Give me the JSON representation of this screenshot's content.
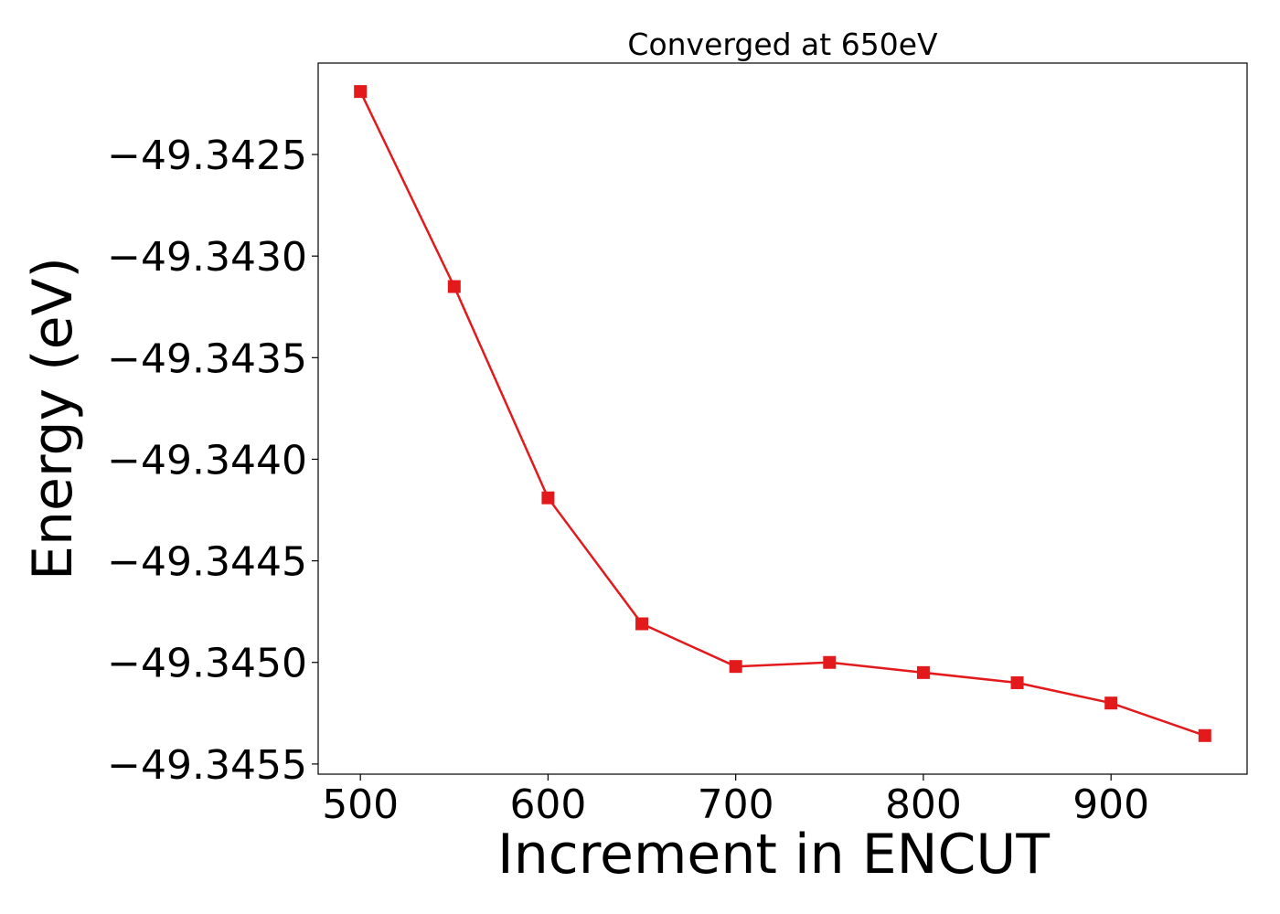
{
  "chart_data": {
    "type": "line",
    "title": "Converged at 650eV",
    "xlabel": "Increment in ENCUT",
    "ylabel": "Energy (eV)",
    "xlim": [
      477.5,
      972.5
    ],
    "ylim": [
      -49.34555,
      -49.34205
    ],
    "x_ticks": [
      500,
      600,
      700,
      800,
      900
    ],
    "x_tick_labels": [
      "500",
      "600",
      "700",
      "800",
      "900"
    ],
    "y_ticks": [
      -49.3425,
      -49.343,
      -49.3435,
      -49.344,
      -49.3445,
      -49.345,
      -49.3455
    ],
    "y_tick_labels": [
      "−49.3425",
      "−49.3430",
      "−49.3435",
      "−49.3440",
      "−49.3445",
      "−49.3450",
      "−49.3455"
    ],
    "grid": false,
    "series": [
      {
        "color": "#e31a1c",
        "marker": "square",
        "x": [
          500,
          550,
          600,
          650,
          700,
          750,
          800,
          850,
          900,
          950
        ],
        "y": [
          -49.34219,
          -49.34315,
          -49.34419,
          -49.34481,
          -49.34502,
          -49.345,
          -49.34505,
          -49.3451,
          -49.3452,
          -49.34536
        ]
      }
    ]
  }
}
